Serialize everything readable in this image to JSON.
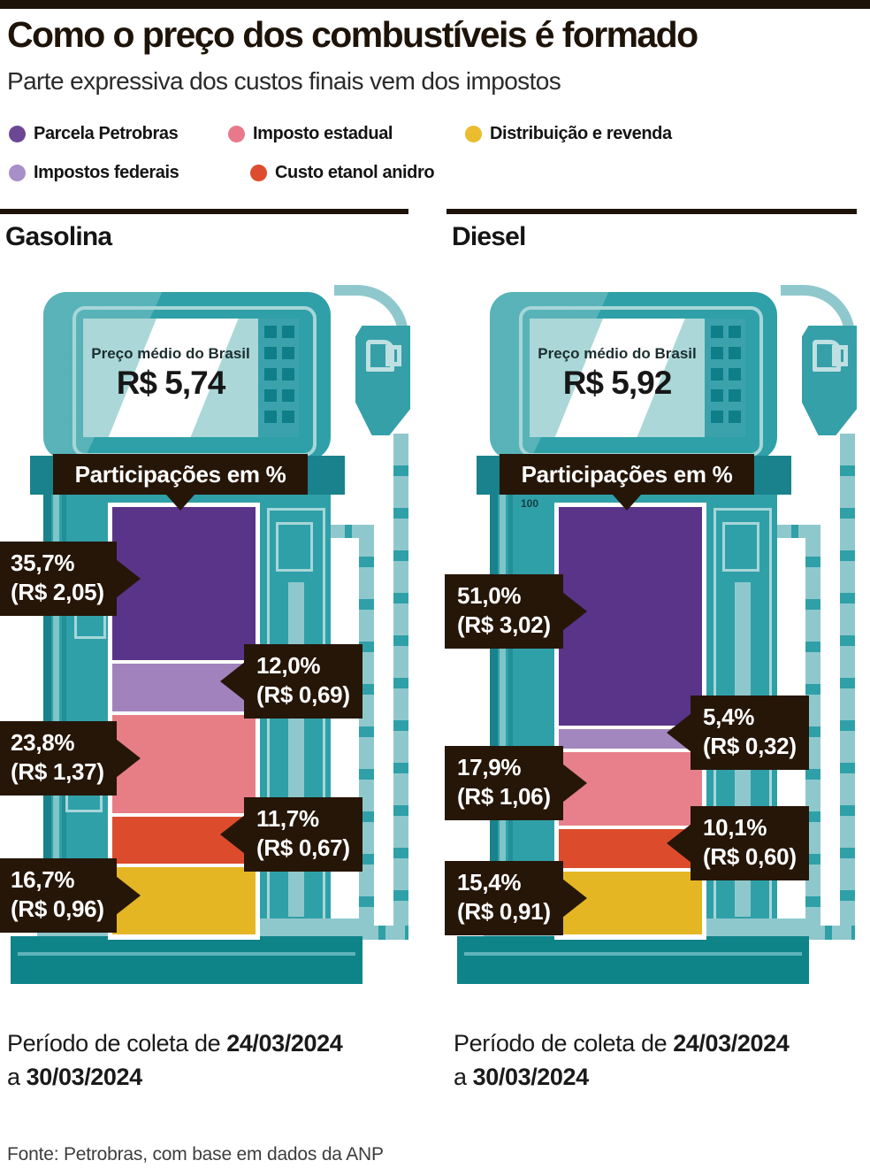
{
  "header": {
    "title": "Como o preço dos combustíveis é formado",
    "subtitle": "Parte expressiva dos custos finais vem dos impostos"
  },
  "legend": {
    "items": [
      {
        "label": "Parcela Petrobras",
        "color": "#6b4796"
      },
      {
        "label": "Imposto estadual",
        "color": "#e8798a"
      },
      {
        "label": "Distribuição e revenda",
        "color": "#eabc2e"
      },
      {
        "label": "Impostos federais",
        "color": "#a98fc9"
      },
      {
        "label": "Custo etanol anidro",
        "color": "#dd4c2f"
      }
    ]
  },
  "chart_data": [
    {
      "type": "bar",
      "stacked": true,
      "title": "Gasolina",
      "banner": "Participações em %",
      "price_label": "Preço médio do Brasil",
      "price": "R$ 5,74",
      "unit": "%",
      "ylim": [
        0,
        100
      ],
      "categories": [
        "Parcela Petrobras",
        "Impostos federais",
        "Imposto estadual",
        "Custo etanol anidro",
        "Distribuição e revenda"
      ],
      "values": [
        35.7,
        12.0,
        23.8,
        11.7,
        16.7
      ],
      "amounts_brl": [
        2.05,
        0.69,
        1.37,
        0.67,
        0.96
      ],
      "segments": [
        {
          "label": "Parcela Petrobras",
          "pct": 35.7,
          "pct_label": "35,7%",
          "amount_label": "(R$ 2,05)",
          "color": "#5a3489",
          "callout_side": "left"
        },
        {
          "label": "Impostos federais",
          "pct": 12.0,
          "pct_label": "12,0%",
          "amount_label": "(R$ 0,69)",
          "color": "#a182bd",
          "callout_side": "right"
        },
        {
          "label": "Imposto estadual",
          "pct": 23.8,
          "pct_label": "23,8%",
          "amount_label": "(R$ 1,37)",
          "color": "#e77e86",
          "callout_side": "left"
        },
        {
          "label": "Custo etanol anidro",
          "pct": 11.7,
          "pct_label": "11,7%",
          "amount_label": "(R$ 0,67)",
          "color": "#dc4c2c",
          "callout_side": "right"
        },
        {
          "label": "Distribuição e revenda",
          "pct": 16.7,
          "pct_label": "16,7%",
          "amount_label": "(R$ 0,96)",
          "color": "#e5b624",
          "callout_side": "left"
        }
      ],
      "period": {
        "prefix": "Período de coleta de",
        "date_start": "24/03/2024",
        "connector": "a",
        "date_end": "30/03/2024"
      }
    },
    {
      "type": "bar",
      "stacked": true,
      "title": "Diesel",
      "banner": "Participações em %",
      "price_label": "Preço médio do Brasil",
      "price": "R$ 5,92",
      "unit": "%",
      "ylim": [
        0,
        100
      ],
      "axis_hint": "100",
      "categories": [
        "Parcela Petrobras",
        "Impostos federais",
        "Imposto estadual",
        "Custo etanol anidro",
        "Distribuição e revenda"
      ],
      "values": [
        51.0,
        5.4,
        17.9,
        10.1,
        15.4
      ],
      "amounts_brl": [
        3.02,
        0.32,
        1.06,
        0.6,
        0.91
      ],
      "segments": [
        {
          "label": "Parcela Petrobras",
          "pct": 51.0,
          "pct_label": "51,0%",
          "amount_label": "(R$ 3,02)",
          "color": "#5a3489",
          "callout_side": "left"
        },
        {
          "label": "Impostos federais",
          "pct": 5.4,
          "pct_label": "5,4%",
          "amount_label": "(R$ 0,32)",
          "color": "#a287be",
          "callout_side": "right"
        },
        {
          "label": "Imposto estadual",
          "pct": 17.9,
          "pct_label": "17,9%",
          "amount_label": "(R$ 1,06)",
          "color": "#e7808a",
          "callout_side": "left"
        },
        {
          "label": "Custo etanol anidro",
          "pct": 10.1,
          "pct_label": "10,1%",
          "amount_label": "(R$ 0,60)",
          "color": "#dc4c2c",
          "callout_side": "right"
        },
        {
          "label": "Distribuição e revenda",
          "pct": 15.4,
          "pct_label": "15,4%",
          "amount_label": "(R$ 0,91)",
          "color": "#e5b624",
          "callout_side": "left"
        }
      ],
      "period": {
        "prefix": "Período de coleta de",
        "date_start": "24/03/2024",
        "connector": "a",
        "date_end": "30/03/2024"
      }
    }
  ],
  "footer": {
    "source": "Fonte: Petrobras, com base em dados da ANP"
  }
}
